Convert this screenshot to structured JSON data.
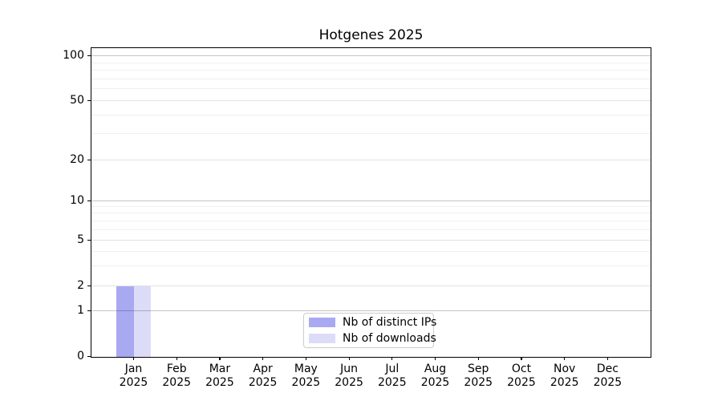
{
  "title": "Hotgenes 2025",
  "chart_data": {
    "type": "bar",
    "title": "Hotgenes 2025",
    "categories": [
      {
        "month": "Jan",
        "year": "2025"
      },
      {
        "month": "Feb",
        "year": "2025"
      },
      {
        "month": "Mar",
        "year": "2025"
      },
      {
        "month": "Apr",
        "year": "2025"
      },
      {
        "month": "May",
        "year": "2025"
      },
      {
        "month": "Jun",
        "year": "2025"
      },
      {
        "month": "Jul",
        "year": "2025"
      },
      {
        "month": "Aug",
        "year": "2025"
      },
      {
        "month": "Sep",
        "year": "2025"
      },
      {
        "month": "Oct",
        "year": "2025"
      },
      {
        "month": "Nov",
        "year": "2025"
      },
      {
        "month": "Dec",
        "year": "2025"
      }
    ],
    "series": [
      {
        "name": "Nb of distinct IPs",
        "color": "#a9a9f2",
        "values": [
          2,
          0,
          0,
          0,
          0,
          0,
          0,
          0,
          0,
          0,
          0,
          0
        ]
      },
      {
        "name": "Nb of downloads",
        "color": "#dcdcf8",
        "values": [
          2,
          0,
          0,
          0,
          0,
          0,
          0,
          0,
          0,
          0,
          0,
          0
        ]
      }
    ],
    "y_axis": {
      "major_ticks": [
        0,
        1,
        2,
        5,
        10,
        20,
        50,
        100
      ],
      "decade_gridlines": [
        1,
        10,
        100
      ],
      "minor_gridlines": [
        3,
        4,
        6,
        7,
        8,
        9,
        30,
        40,
        60,
        70,
        80,
        90
      ],
      "scale": "log-like with linear segment near zero",
      "range": [
        0,
        100
      ]
    },
    "grid": "on",
    "legend_position": "lower center inside plot"
  },
  "legend": {
    "items": [
      {
        "label": "Nb of distinct IPs",
        "color": "#a9a9f2"
      },
      {
        "label": "Nb of downloads",
        "color": "#dcdcf8"
      }
    ]
  }
}
